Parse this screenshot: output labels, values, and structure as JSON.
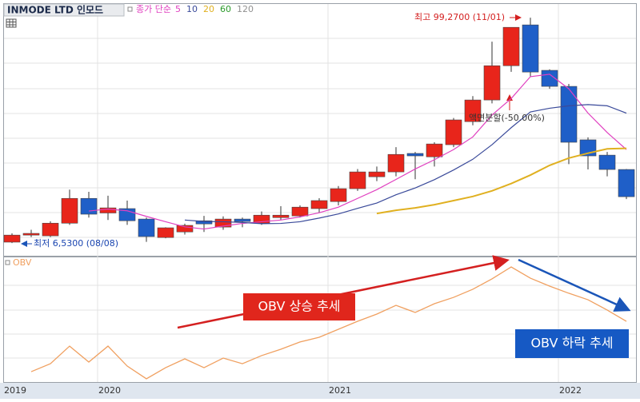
{
  "chart_data": [
    {
      "type": "candlestick",
      "title": "INMODE LTD 인모드",
      "ma_label": "종가 단순",
      "categories": [
        "2019",
        null,
        null,
        null,
        null,
        "2020",
        null,
        null,
        null,
        null,
        null,
        null,
        null,
        null,
        null,
        null,
        null,
        "2021",
        null,
        null,
        null,
        null,
        null,
        null,
        null,
        null,
        null,
        null,
        null,
        "2022",
        null,
        null,
        null
      ],
      "ohlc": {
        "open": [
          6.9,
          9.8,
          9.5,
          14.7,
          24.9,
          18.9,
          20.7,
          16.4,
          8.8,
          11.1,
          15.7,
          13.1,
          16.4,
          14.7,
          17,
          17.7,
          20.7,
          23.6,
          28.9,
          33.8,
          35.8,
          43.4,
          42,
          47,
          56.5,
          65.4,
          79.5,
          96.3,
          77.6,
          71,
          49,
          42.7,
          36.8
        ],
        "high": [
          10.5,
          12,
          15.5,
          28.5,
          27.6,
          26,
          24,
          17,
          13,
          14.5,
          17.7,
          17.5,
          17,
          19.5,
          21.7,
          22,
          25,
          30,
          37,
          38,
          46,
          44,
          48,
          58,
          67,
          89.4,
          95.3,
          99.27,
          78,
          72,
          50,
          44,
          37
        ],
        "low": [
          6.53,
          9,
          9,
          14,
          17,
          16,
          14,
          7,
          8.5,
          10,
          11.1,
          12,
          13,
          14,
          16,
          17,
          19,
          22,
          28,
          32,
          34,
          32.8,
          38,
          46,
          55,
          64,
          77,
          75,
          70,
          39,
          36.8,
          34,
          24.6
        ],
        "close": [
          9.8,
          10.5,
          14.7,
          24.9,
          18.4,
          21,
          15.7,
          9.2,
          12.8,
          13.8,
          14.4,
          16.4,
          15.4,
          18,
          18,
          21.3,
          24,
          28.9,
          35.8,
          35.8,
          43,
          42.4,
          47.3,
          57.2,
          65.4,
          79.5,
          95.3,
          76.9,
          71,
          48,
          42.4,
          36.8,
          25.6
        ]
      },
      "up_color": "#e8251b",
      "down_color": "#1f5fc8",
      "ylim": [
        1.3,
        104.9
      ],
      "series": [
        {
          "name": "5",
          "color": "#e040c0",
          "values": [
            null,
            null,
            null,
            null,
            19.7,
            20.5,
            19.8,
            17.5,
            15.3,
            13.2,
            12.3,
            13.5,
            14.6,
            15.3,
            16.0,
            17.3,
            19.0,
            21.3,
            24.9,
            28.5,
            32.7,
            37.0,
            40.8,
            45.0,
            50.2,
            59.2,
            66,
            75,
            76,
            70,
            60,
            52,
            45
          ]
        },
        {
          "name": "10",
          "color": "#3a4a9a",
          "values": [
            null,
            null,
            null,
            null,
            null,
            null,
            null,
            null,
            null,
            16.0,
            15.4,
            15.3,
            15.0,
            14.5,
            14.6,
            15.3,
            16.8,
            18.5,
            20.8,
            23.0,
            26.4,
            29.2,
            32.6,
            36.6,
            41.0,
            47.0,
            54.0,
            60.5,
            62,
            63,
            63.5,
            63,
            60
          ]
        },
        {
          "name": "20",
          "color": "#e0b020",
          "values": [
            null,
            null,
            null,
            null,
            null,
            null,
            null,
            null,
            null,
            null,
            null,
            null,
            null,
            null,
            null,
            null,
            null,
            null,
            null,
            18.7,
            20.0,
            21.0,
            22.3,
            24.0,
            25.7,
            28.0,
            31.0,
            34.5,
            38.5,
            41.5,
            43.5,
            45.3,
            45.5
          ]
        },
        {
          "name": "60",
          "color": "#2a9a2a"
        },
        {
          "name": "120",
          "color": "#909090"
        }
      ],
      "annotations": [
        "최고 99,2700 (11/01)",
        "최저 6,5300 (08/08)",
        "액면분할(-50.00%)"
      ]
    },
    {
      "type": "line",
      "ylim": [
        0,
        100
      ],
      "series": [
        {
          "name": "OBV",
          "color": "#f0a060",
          "values": [
            null,
            8.3,
            14.7,
            28.8,
            16.0,
            28.8,
            12.8,
            2.6,
            11.5,
            18.6,
            11.5,
            19.2,
            14.7,
            21.2,
            26.3,
            32.1,
            35.9,
            42.3,
            48.7,
            54.5,
            61.5,
            55.8,
            62.8,
            67.9,
            74.4,
            82.7,
            92.3,
            83.3,
            76.9,
            71.2,
            66.0,
            57.7,
            48.7
          ]
        }
      ],
      "annotations": [
        "OBV 상승 추세",
        "OBV 하락 추세"
      ]
    }
  ]
}
